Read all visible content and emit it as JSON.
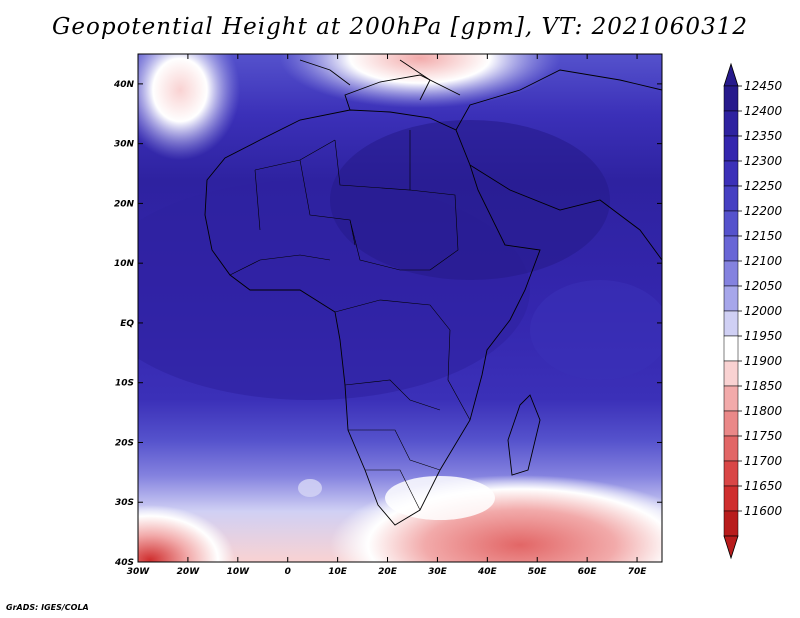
{
  "title": "Geopotential Height at 200hPa [gpm], VT: 2021060312",
  "credit": "GrADS: IGES/COLA",
  "map": {
    "lon_range": [
      -30,
      75
    ],
    "lat_range": [
      -40,
      45
    ],
    "lon_ticks": [
      {
        "value": -30,
        "label": "30W"
      },
      {
        "value": -20,
        "label": "20W"
      },
      {
        "value": -10,
        "label": "10W"
      },
      {
        "value": 0,
        "label": "0"
      },
      {
        "value": 10,
        "label": "10E"
      },
      {
        "value": 20,
        "label": "20E"
      },
      {
        "value": 30,
        "label": "30E"
      },
      {
        "value": 40,
        "label": "40E"
      },
      {
        "value": 50,
        "label": "50E"
      },
      {
        "value": 60,
        "label": "60E"
      },
      {
        "value": 70,
        "label": "70E"
      }
    ],
    "lat_ticks": [
      {
        "value": 40,
        "label": "40N"
      },
      {
        "value": 30,
        "label": "30N"
      },
      {
        "value": 20,
        "label": "20N"
      },
      {
        "value": 10,
        "label": "10N"
      },
      {
        "value": 0,
        "label": "EQ"
      },
      {
        "value": -10,
        "label": "10S"
      },
      {
        "value": -20,
        "label": "20S"
      },
      {
        "value": -30,
        "label": "30S"
      },
      {
        "value": -40,
        "label": "40S"
      }
    ]
  },
  "colorbar": {
    "levels": [
      "12450",
      "12400",
      "12350",
      "12300",
      "12250",
      "12200",
      "12150",
      "12100",
      "12050",
      "12000",
      "11950",
      "11900",
      "11850",
      "11800",
      "11750",
      "11700",
      "11650",
      "11600"
    ],
    "colors": [
      "#271a8c",
      "#2e22a0",
      "#3426ae",
      "#3b30b8",
      "#4640c2",
      "#5552cc",
      "#6966d6",
      "#8482df",
      "#a6a6ea",
      "#d0d0f4",
      "#ffffff",
      "#f9d2d2",
      "#f2aaaa",
      "#ea8888",
      "#e26666",
      "#d94646",
      "#cf2e2e",
      "#b81c1c"
    ]
  },
  "icons": {
    "colorbar_top": "triangle-up-icon",
    "colorbar_bottom": "triangle-down-icon"
  }
}
